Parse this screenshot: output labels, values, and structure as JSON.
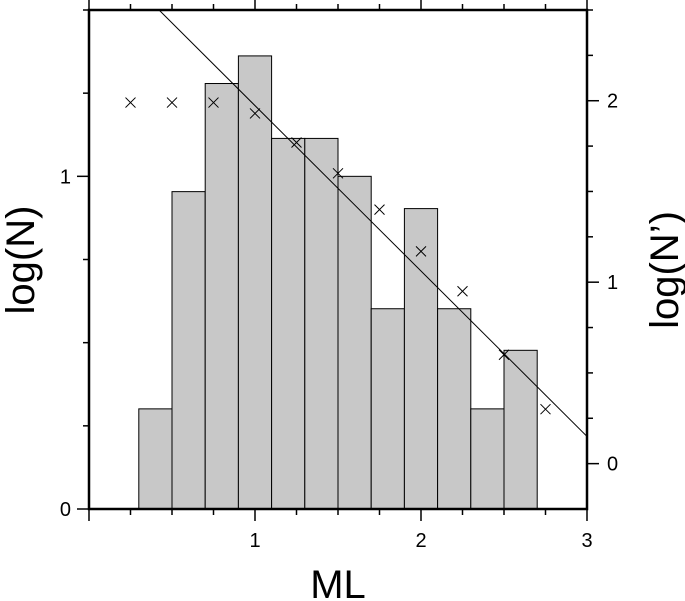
{
  "chart_data": {
    "type": "bar",
    "xlabel": "ML",
    "ylabel": "log(N)",
    "ylabel_right": "log(N’)",
    "xlim": [
      0.0,
      3.0
    ],
    "ylim": [
      0.0,
      1.5
    ],
    "ylim_right": [
      -0.25,
      2.5
    ],
    "x_ticks": [
      1,
      2,
      3
    ],
    "y_ticks": [
      0,
      1
    ],
    "y_ticks_right": [
      0,
      1,
      2
    ],
    "bar_width": 0.2,
    "bars": [
      {
        "x": 0.4,
        "value": 0.301
      },
      {
        "x": 0.6,
        "value": 0.954
      },
      {
        "x": 0.8,
        "value": 1.279
      },
      {
        "x": 1.0,
        "value": 1.362
      },
      {
        "x": 1.2,
        "value": 1.114
      },
      {
        "x": 1.4,
        "value": 1.114
      },
      {
        "x": 1.6,
        "value": 1.0
      },
      {
        "x": 1.8,
        "value": 0.602
      },
      {
        "x": 2.0,
        "value": 0.903
      },
      {
        "x": 2.2,
        "value": 0.602
      },
      {
        "x": 2.4,
        "value": 0.301
      },
      {
        "x": 2.6,
        "value": 0.477
      }
    ],
    "cumulative_points": [
      {
        "x": 0.25,
        "y": 1.99
      },
      {
        "x": 0.5,
        "y": 1.99
      },
      {
        "x": 0.75,
        "y": 1.99
      },
      {
        "x": 1.0,
        "y": 1.93
      },
      {
        "x": 1.25,
        "y": 1.77
      },
      {
        "x": 1.5,
        "y": 1.6
      },
      {
        "x": 1.75,
        "y": 1.4
      },
      {
        "x": 2.0,
        "y": 1.17
      },
      {
        "x": 2.25,
        "y": 0.95
      },
      {
        "x": 2.5,
        "y": 0.6
      },
      {
        "x": 2.75,
        "y": 0.3
      }
    ],
    "fit_line": {
      "x": [
        0.4,
        3.0
      ],
      "y": [
        2.52,
        0.15
      ]
    },
    "grid": false,
    "bar_color": "#c8c8c8",
    "edge_color": "#000000"
  }
}
